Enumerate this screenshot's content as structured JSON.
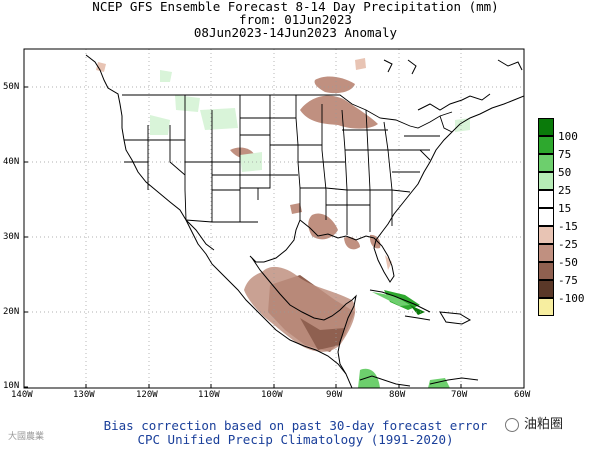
{
  "title": {
    "line1": "NCEP GFS Ensemble Forecast 8-14 Day Precipitation (mm)",
    "line2": "from: 01Jun2023",
    "line3": "08Jun2023-14Jun2023 Anomaly"
  },
  "axes": {
    "lat_labels": [
      "50N",
      "40N",
      "30N",
      "20N",
      "10N"
    ],
    "lon_labels": [
      "140W",
      "130W",
      "120W",
      "110W",
      "100W",
      "90W",
      "80W",
      "70W",
      "60W"
    ]
  },
  "legend": {
    "levels": [
      "100",
      "75",
      "50",
      "25",
      "15",
      "-15",
      "-25",
      "-50",
      "-75",
      "-100"
    ],
    "colors": [
      "#0a7a0a",
      "#2ea82e",
      "#6dcf6d",
      "#b7ecb7",
      "#ffffff",
      "#ffffff",
      "#e8c4b4",
      "#c09080",
      "#8f6050",
      "#5a3828",
      "#f7eea0"
    ]
  },
  "footer": {
    "line1": "Bias correction based on past 30-day forecast error",
    "line2": "CPC Unified Precip Climatology (1991-2020)"
  },
  "watermarks": {
    "left": "大國農業",
    "right": "油粕圈"
  }
}
